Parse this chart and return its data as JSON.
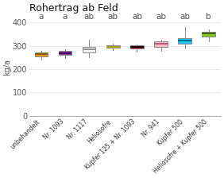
{
  "title": "Rohertrag ab Feld",
  "ylabel": "kg/a",
  "xlim": [
    0.5,
    8.5
  ],
  "ylim": [
    0,
    420
  ],
  "yticks": [
    0,
    100,
    200,
    300,
    400
  ],
  "categories": [
    "unbehandelt",
    "Nr. 1093",
    "Nr. 1117",
    "Heliosofre",
    "Kupfer 125 + Nr. 1093",
    "Nr. 941",
    "Kupfer 500",
    "Heliosofre + Kupfer 500"
  ],
  "significance": [
    "a",
    "a",
    "ab",
    "ab",
    "ab",
    "ab",
    "ab",
    "b"
  ],
  "box_colors": [
    "#E8961E",
    "#8B2F8B",
    "#F2F2F2",
    "#F5F500",
    "#8B0000",
    "#FFB6C1",
    "#1EC8F5",
    "#82C820"
  ],
  "median_colors": [
    "#7A5000",
    "#3A006A",
    "#888888",
    "#A0A000",
    "#000000",
    "#B05070",
    "#006090",
    "#3A5A00"
  ],
  "boxes": [
    {
      "q1": 255,
      "median": 265,
      "q3": 272,
      "whislo": 242,
      "whishi": 278
    },
    {
      "q1": 260,
      "median": 270,
      "q3": 278,
      "whislo": 248,
      "whishi": 285
    },
    {
      "q1": 272,
      "median": 284,
      "q3": 296,
      "whislo": 252,
      "whishi": 328
    },
    {
      "q1": 291,
      "median": 297,
      "q3": 303,
      "whislo": 282,
      "whishi": 309
    },
    {
      "q1": 290,
      "median": 296,
      "q3": 301,
      "whislo": 276,
      "whishi": 305
    },
    {
      "q1": 296,
      "median": 308,
      "q3": 318,
      "whislo": 278,
      "whishi": 328
    },
    {
      "q1": 308,
      "median": 322,
      "q3": 332,
      "whislo": 288,
      "whishi": 382
    },
    {
      "q1": 340,
      "median": 352,
      "q3": 362,
      "whislo": 320,
      "whishi": 372
    }
  ],
  "background_color": "#FFFFFF",
  "font_size_title": 9,
  "font_size_ylabel": 7,
  "font_size_yticks": 7,
  "font_size_xticks": 5.5,
  "font_size_sig": 7.5,
  "box_width": 0.55,
  "linewidth": 0.7,
  "spine_color": "#AAAAAA"
}
